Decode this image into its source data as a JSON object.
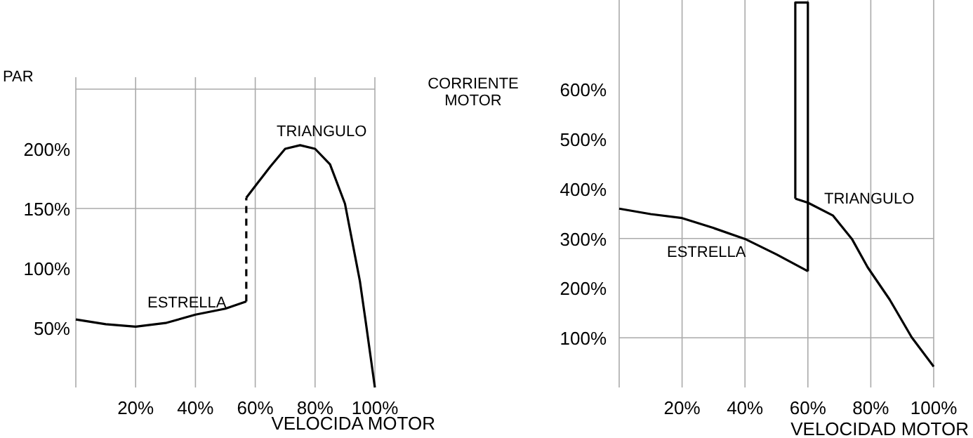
{
  "chart_data": [
    {
      "type": "line",
      "ylabel": "PAR",
      "xlabel": "VELOCIDA MOTOR",
      "xlim": [
        0,
        100
      ],
      "ylim": [
        0,
        260
      ],
      "xticks": [
        {
          "value": 0,
          "label": null
        },
        {
          "value": 20,
          "label": "20%"
        },
        {
          "value": 40,
          "label": "40%"
        },
        {
          "value": 60,
          "label": "60%"
        },
        {
          "value": 80,
          "label": "80%"
        },
        {
          "value": 100,
          "label": "100%"
        }
      ],
      "yticks": [
        {
          "value": 50,
          "label": "50%"
        },
        {
          "value": 100,
          "label": "100%"
        },
        {
          "value": 150,
          "label": "150%"
        },
        {
          "value": 200,
          "label": "200%"
        }
      ],
      "grid": "x",
      "ref_lines": [
        {
          "axis": "y",
          "value": 150
        },
        {
          "axis": "y",
          "value": 250
        }
      ],
      "series": [
        {
          "name": "ESTRELLA",
          "color": "#000000",
          "x": [
            0,
            10,
            20,
            30,
            40,
            50,
            57
          ],
          "values": [
            57,
            53,
            51,
            54,
            61,
            66,
            72
          ]
        },
        {
          "color": "#000000",
          "line_style": "dashed",
          "x": [
            57,
            57
          ],
          "values": [
            72,
            159
          ]
        },
        {
          "name": "TRIANGULO",
          "color": "#000000",
          "x": [
            57,
            61,
            65,
            70,
            75,
            80,
            85,
            90,
            95,
            97,
            100
          ],
          "values": [
            159,
            172,
            185,
            200,
            203,
            200,
            187,
            154,
            89,
            54,
            0
          ]
        }
      ]
    },
    {
      "type": "line",
      "ylabel": "CORRIENTE MOTOR",
      "xlabel": "VELOCIDAD MOTOR",
      "xlim": [
        0,
        100
      ],
      "ylim": [
        0,
        780
      ],
      "xticks": [
        {
          "value": 0,
          "label": null
        },
        {
          "value": 20,
          "label": "20%"
        },
        {
          "value": 40,
          "label": "40%"
        },
        {
          "value": 60,
          "label": "60%"
        },
        {
          "value": 80,
          "label": "80%"
        },
        {
          "value": 100,
          "label": "100%"
        }
      ],
      "yticks": [
        {
          "value": 100,
          "label": "100%"
        },
        {
          "value": 200,
          "label": "200%"
        },
        {
          "value": 300,
          "label": "300%"
        },
        {
          "value": 400,
          "label": "400%"
        },
        {
          "value": 500,
          "label": "500%"
        },
        {
          "value": 600,
          "label": "600%"
        }
      ],
      "grid": "x",
      "ref_lines": [
        {
          "axis": "y",
          "value": 100
        },
        {
          "axis": "y",
          "value": 300
        }
      ],
      "series": [
        {
          "name": "ESTRELLA",
          "color": "#000000",
          "x": [
            0,
            10,
            20,
            30,
            40,
            50,
            60
          ],
          "values": [
            360,
            349,
            341,
            321,
            299,
            268,
            234
          ]
        },
        {
          "color": "#000000",
          "x": [
            60,
            60,
            56,
            56
          ],
          "values": [
            234,
            775,
            775,
            380
          ]
        },
        {
          "name": "TRIANGULO",
          "color": "#000000",
          "x": [
            56,
            60,
            68,
            74,
            79,
            86,
            93,
            100
          ],
          "values": [
            380,
            372,
            346,
            299,
            242,
            177,
            101,
            42
          ]
        }
      ]
    }
  ]
}
